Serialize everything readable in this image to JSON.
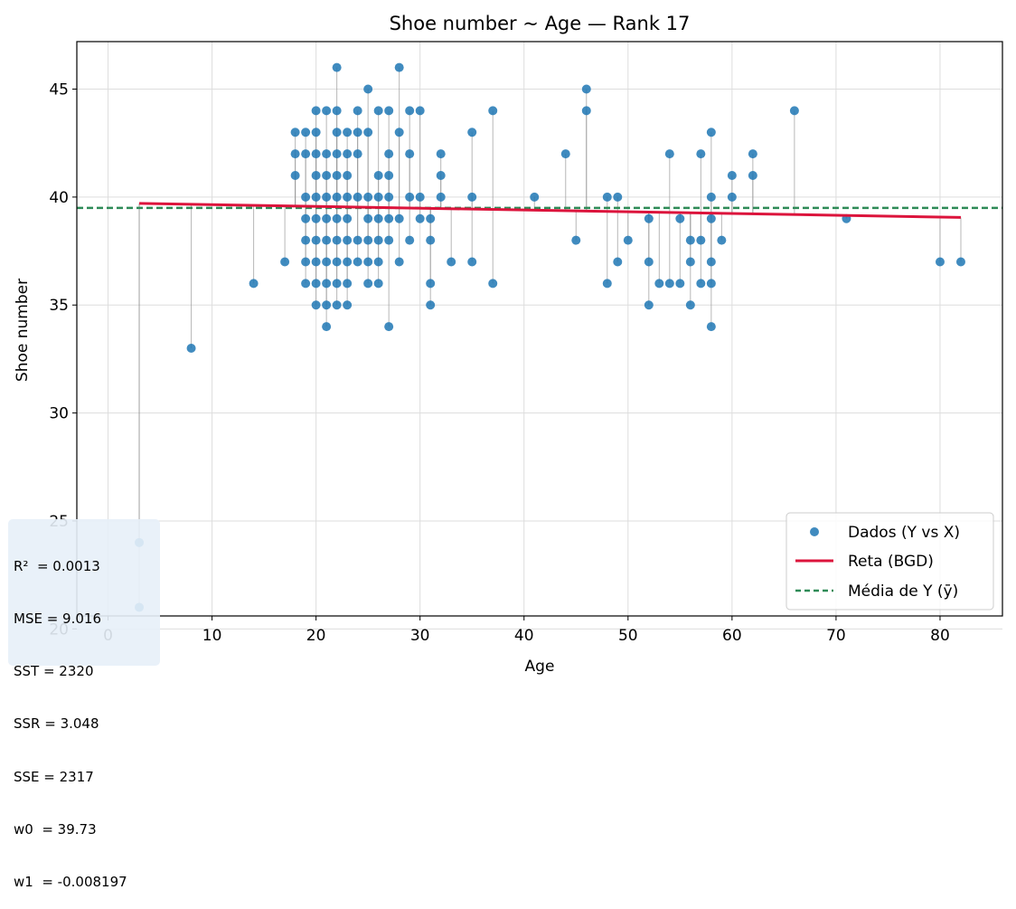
{
  "chart_data": {
    "type": "scatter",
    "title": "Shoe number ~ Age — Rank 17",
    "xlabel": "Age",
    "ylabel": "Shoe number",
    "xlim": [
      -3,
      86
    ],
    "ylim": [
      20.6,
      47.2
    ],
    "xticks": [
      0,
      10,
      20,
      30,
      40,
      50,
      60,
      70,
      80
    ],
    "yticks": [
      20,
      25,
      30,
      35,
      40,
      45
    ],
    "grid": true,
    "legend_position": "bottom-right",
    "legend": [
      "Dados (Y vs X)",
      "Reta (BGD)",
      "Média de Y (ȳ)"
    ],
    "colors": {
      "points": "#1f77b4",
      "line": "#dc143c",
      "mean": "#2e8b57",
      "residual": "#999999"
    },
    "series": [
      {
        "name": "Dados (Y vs X)",
        "points": [
          [
            3,
            24
          ],
          [
            3,
            21
          ],
          [
            8,
            33
          ],
          [
            14,
            36
          ],
          [
            17,
            37
          ],
          [
            18,
            43
          ],
          [
            18,
            42
          ],
          [
            18,
            41
          ],
          [
            19,
            43
          ],
          [
            19,
            42
          ],
          [
            19,
            40
          ],
          [
            19,
            39
          ],
          [
            19,
            38
          ],
          [
            19,
            37
          ],
          [
            19,
            36
          ],
          [
            20,
            44
          ],
          [
            20,
            43
          ],
          [
            20,
            42
          ],
          [
            20,
            41
          ],
          [
            20,
            40
          ],
          [
            20,
            39
          ],
          [
            20,
            38
          ],
          [
            20,
            37
          ],
          [
            20,
            36
          ],
          [
            20,
            35
          ],
          [
            21,
            44
          ],
          [
            21,
            42
          ],
          [
            21,
            41
          ],
          [
            21,
            40
          ],
          [
            21,
            39
          ],
          [
            21,
            38
          ],
          [
            21,
            37
          ],
          [
            21,
            36
          ],
          [
            21,
            35
          ],
          [
            21,
            34
          ],
          [
            22,
            46
          ],
          [
            22,
            44
          ],
          [
            22,
            43
          ],
          [
            22,
            42
          ],
          [
            22,
            41
          ],
          [
            22,
            40
          ],
          [
            22,
            39
          ],
          [
            22,
            38
          ],
          [
            22,
            37
          ],
          [
            22,
            36
          ],
          [
            22,
            35
          ],
          [
            23,
            43
          ],
          [
            23,
            42
          ],
          [
            23,
            41
          ],
          [
            23,
            40
          ],
          [
            23,
            39
          ],
          [
            23,
            38
          ],
          [
            23,
            37
          ],
          [
            23,
            36
          ],
          [
            23,
            35
          ],
          [
            24,
            44
          ],
          [
            24,
            43
          ],
          [
            24,
            42
          ],
          [
            24,
            40
          ],
          [
            24,
            38
          ],
          [
            24,
            37
          ],
          [
            25,
            45
          ],
          [
            25,
            43
          ],
          [
            25,
            40
          ],
          [
            25,
            39
          ],
          [
            25,
            38
          ],
          [
            25,
            37
          ],
          [
            25,
            36
          ],
          [
            26,
            44
          ],
          [
            26,
            41
          ],
          [
            26,
            40
          ],
          [
            26,
            39
          ],
          [
            26,
            38
          ],
          [
            26,
            37
          ],
          [
            26,
            36
          ],
          [
            27,
            44
          ],
          [
            27,
            42
          ],
          [
            27,
            41
          ],
          [
            27,
            40
          ],
          [
            27,
            39
          ],
          [
            27,
            38
          ],
          [
            27,
            34
          ],
          [
            28,
            46
          ],
          [
            28,
            43
          ],
          [
            28,
            39
          ],
          [
            28,
            37
          ],
          [
            29,
            44
          ],
          [
            29,
            42
          ],
          [
            29,
            40
          ],
          [
            29,
            38
          ],
          [
            30,
            44
          ],
          [
            30,
            40
          ],
          [
            30,
            39
          ],
          [
            31,
            39
          ],
          [
            31,
            38
          ],
          [
            31,
            36
          ],
          [
            31,
            35
          ],
          [
            32,
            42
          ],
          [
            32,
            41
          ],
          [
            32,
            40
          ],
          [
            33,
            37
          ],
          [
            35,
            43
          ],
          [
            35,
            40
          ],
          [
            35,
            37
          ],
          [
            37,
            44
          ],
          [
            37,
            36
          ],
          [
            41,
            40
          ],
          [
            44,
            42
          ],
          [
            45,
            38
          ],
          [
            46,
            45
          ],
          [
            46,
            44
          ],
          [
            48,
            40
          ],
          [
            48,
            36
          ],
          [
            49,
            40
          ],
          [
            49,
            37
          ],
          [
            50,
            38
          ],
          [
            52,
            39
          ],
          [
            52,
            37
          ],
          [
            52,
            35
          ],
          [
            53,
            36
          ],
          [
            54,
            42
          ],
          [
            54,
            36
          ],
          [
            55,
            39
          ],
          [
            55,
            36
          ],
          [
            56,
            38
          ],
          [
            56,
            37
          ],
          [
            56,
            35
          ],
          [
            57,
            42
          ],
          [
            57,
            38
          ],
          [
            57,
            36
          ],
          [
            58,
            43
          ],
          [
            58,
            40
          ],
          [
            58,
            39
          ],
          [
            58,
            37
          ],
          [
            58,
            36
          ],
          [
            58,
            34
          ],
          [
            59,
            38
          ],
          [
            60,
            41
          ],
          [
            60,
            40
          ],
          [
            62,
            42
          ],
          [
            62,
            41
          ],
          [
            66,
            44
          ],
          [
            71,
            39
          ],
          [
            80,
            37
          ],
          [
            82,
            37
          ]
        ]
      },
      {
        "name": "Reta (BGD)",
        "x_range": [
          3,
          82
        ],
        "w0": 39.73,
        "w1": -0.008197
      },
      {
        "name": "Média de Y (ȳ)",
        "y": 39.5
      }
    ],
    "stats": [
      "R²  = 0.0013",
      "MSE = 9.016",
      "SST = 2320",
      "SSR = 3.048",
      "SSE = 2317",
      "w0  = 39.73",
      "w1  = -0.008197"
    ]
  }
}
